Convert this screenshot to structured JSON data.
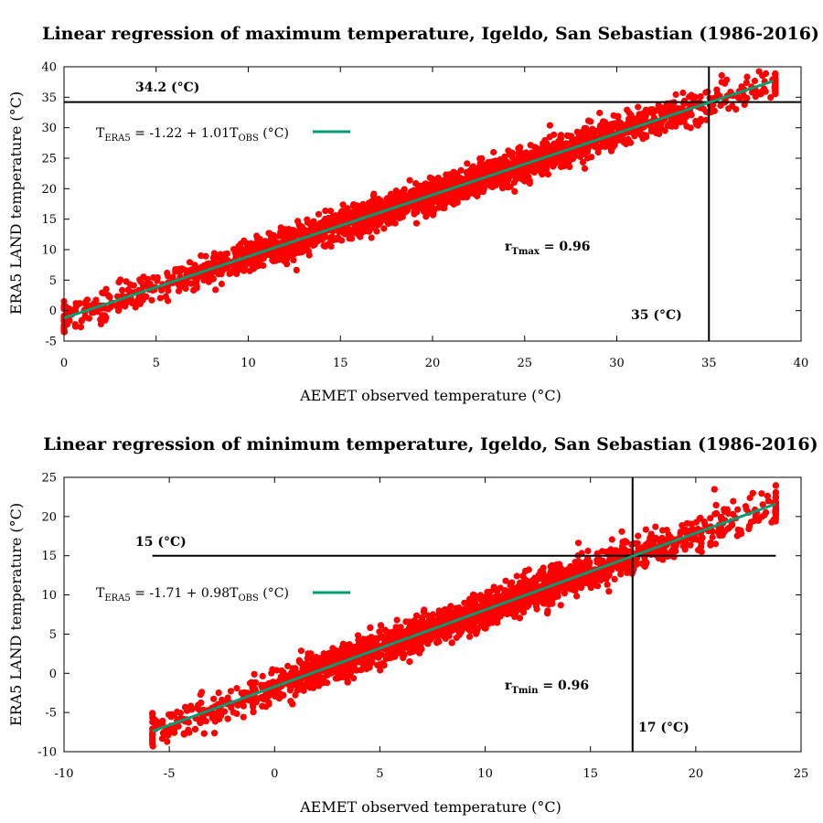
{
  "colors": {
    "points": "#ff0000",
    "fit": "#009e73",
    "axes": "#000000",
    "ref_lines": "#000000"
  },
  "chart_data": [
    {
      "type": "scatter",
      "title": "Linear regression of maximum temperature, Igeldo, San Sebastian (1986-2016)",
      "xlabel": "AEMET observed temperature (°C)",
      "ylabel": "ERA5 LAND temperature (°C)",
      "xlim": [
        0,
        40
      ],
      "ylim": [
        -5,
        40
      ],
      "xticks": [
        0,
        5,
        10,
        15,
        20,
        25,
        30,
        35,
        40
      ],
      "yticks": [
        -5,
        0,
        5,
        10,
        15,
        20,
        25,
        30,
        35,
        40
      ],
      "xtick_labels": [
        "0",
        "5",
        "10",
        "15",
        "20",
        "25",
        "30",
        "35",
        "40"
      ],
      "ytick_labels": [
        "-5",
        "0",
        "5",
        "10",
        "15",
        "20",
        "25",
        "30",
        "35",
        "40"
      ],
      "grid": false,
      "legend_position": "top-left",
      "points_summary": {
        "n_approx": 11000,
        "x_range": [
          0,
          38.6
        ],
        "spread_sd": 1.3
      },
      "fit": {
        "intercept": -1.22,
        "slope": 1.01,
        "x_range": [
          0,
          38.5
        ],
        "label_parts": {
          "t": "T",
          "sub1": "ERA5",
          "mid": " = -1.22 + 1.01T",
          "sub2": "OBS",
          "unit": " (°C)"
        }
      },
      "hline": {
        "y": 34.2,
        "x_range": [
          0,
          40
        ],
        "label": "34.2 (°C)"
      },
      "vline": {
        "x": 35,
        "y_range": [
          -5,
          40
        ],
        "label": "35 (°C)"
      },
      "corr": {
        "r": "r",
        "sub": "Tmax",
        "text": " = 0.96"
      }
    },
    {
      "type": "scatter",
      "title": "Linear regression of minimum temperature, Igeldo, San Sebastian (1986-2016)",
      "xlabel": "AEMET observed temperature (°C)",
      "ylabel": "ERA5 LAND temperature (°C)",
      "xlim": [
        -10,
        25
      ],
      "ylim": [
        -10,
        25
      ],
      "xticks": [
        -10,
        -5,
        0,
        5,
        10,
        15,
        20,
        25
      ],
      "yticks": [
        -10,
        -5,
        0,
        5,
        10,
        15,
        20,
        25
      ],
      "xtick_labels": [
        "-10",
        "-5",
        "0",
        "5",
        "10",
        "15",
        "20",
        "25"
      ],
      "ytick_labels": [
        "-10",
        "-5",
        "0",
        "5",
        "10",
        "15",
        "20",
        "25"
      ],
      "grid": false,
      "legend_position": "top-left",
      "points_summary": {
        "n_approx": 11000,
        "x_range": [
          -5.8,
          23.8
        ],
        "spread_sd": 1.1
      },
      "fit": {
        "intercept": -1.71,
        "slope": 0.98,
        "x_range": [
          -5.8,
          23.8
        ],
        "label_parts": {
          "t": "T",
          "sub1": "ERA5",
          "mid": " = -1.71 + 0.98T",
          "sub2": "OBS",
          "unit": " (°C)"
        }
      },
      "hline": {
        "y": 15,
        "x_range": [
          -5.8,
          23.8
        ],
        "label": "15 (°C)"
      },
      "vline": {
        "x": 17,
        "y_range": [
          -10,
          25
        ],
        "label": "17 (°C)"
      },
      "corr": {
        "r": "r",
        "sub": "Tmin",
        "text": " = 0.96"
      }
    }
  ]
}
